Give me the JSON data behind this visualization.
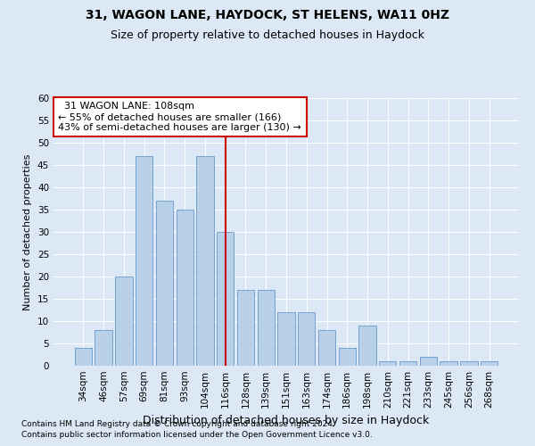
{
  "title1": "31, WAGON LANE, HAYDOCK, ST HELENS, WA11 0HZ",
  "title2": "Size of property relative to detached houses in Haydock",
  "xlabel": "Distribution of detached houses by size in Haydock",
  "ylabel": "Number of detached properties",
  "categories": [
    "34sqm",
    "46sqm",
    "57sqm",
    "69sqm",
    "81sqm",
    "93sqm",
    "104sqm",
    "116sqm",
    "128sqm",
    "139sqm",
    "151sqm",
    "163sqm",
    "174sqm",
    "186sqm",
    "198sqm",
    "210sqm",
    "221sqm",
    "233sqm",
    "245sqm",
    "256sqm",
    "268sqm"
  ],
  "values": [
    4,
    8,
    20,
    47,
    37,
    35,
    47,
    30,
    17,
    17,
    12,
    12,
    8,
    4,
    9,
    1,
    1,
    2,
    1,
    1,
    1
  ],
  "bar_color": "#b8d0e8",
  "bar_edgecolor": "#6699cc",
  "highlight_index": 7,
  "highlight_color": "#cc0000",
  "annotation_text": "  31 WAGON LANE: 108sqm\n← 55% of detached houses are smaller (166)\n43% of semi-detached houses are larger (130) →",
  "annotation_box_color": "#ffffff",
  "annotation_box_edgecolor": "#cc0000",
  "ylim": [
    0,
    60
  ],
  "yticks": [
    0,
    5,
    10,
    15,
    20,
    25,
    30,
    35,
    40,
    45,
    50,
    55,
    60
  ],
  "footer1": "Contains HM Land Registry data © Crown copyright and database right 2024.",
  "footer2": "Contains public sector information licensed under the Open Government Licence v3.0.",
  "bg_color": "#dce8f5",
  "plot_bg_color": "#dce8f5",
  "title1_fontsize": 10,
  "title2_fontsize": 9,
  "xlabel_fontsize": 9,
  "ylabel_fontsize": 8,
  "tick_fontsize": 7.5,
  "annotation_fontsize": 8,
  "footer_fontsize": 6.5
}
